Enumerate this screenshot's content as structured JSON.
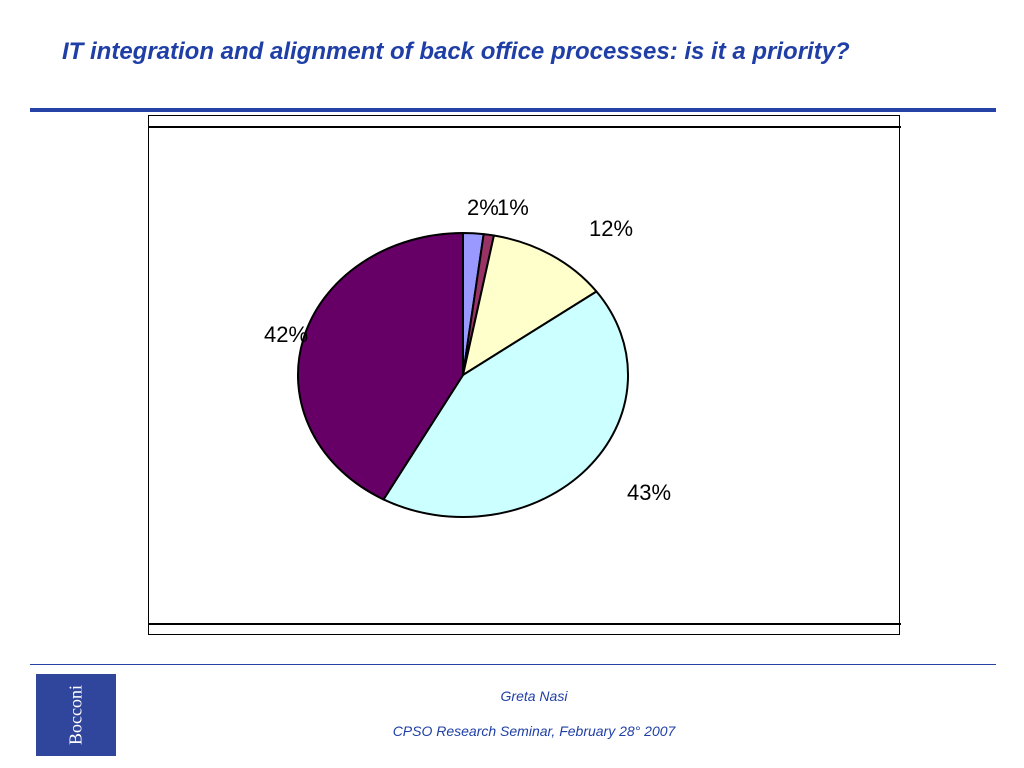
{
  "slide": {
    "title": "IT integration and alignment of back office processes: is it a priority?",
    "footer": {
      "author": "Greta Nasi",
      "event": "CPSO Research Seminar, February 28° 2007",
      "logo_text": "Bocconi"
    }
  },
  "chart_data": {
    "type": "pie",
    "title": "",
    "slices": [
      {
        "label": "2%",
        "value": 2,
        "color": "#9999ff"
      },
      {
        "label": "1%",
        "value": 1,
        "color": "#993366"
      },
      {
        "label": "12%",
        "value": 12,
        "color": "#ffffcc"
      },
      {
        "label": "43%",
        "value": 43,
        "color": "#ccffff"
      },
      {
        "label": "42%",
        "value": 42,
        "color": "#660066"
      }
    ],
    "start": "12 o'clock",
    "direction": "clockwise",
    "legend": "none"
  }
}
